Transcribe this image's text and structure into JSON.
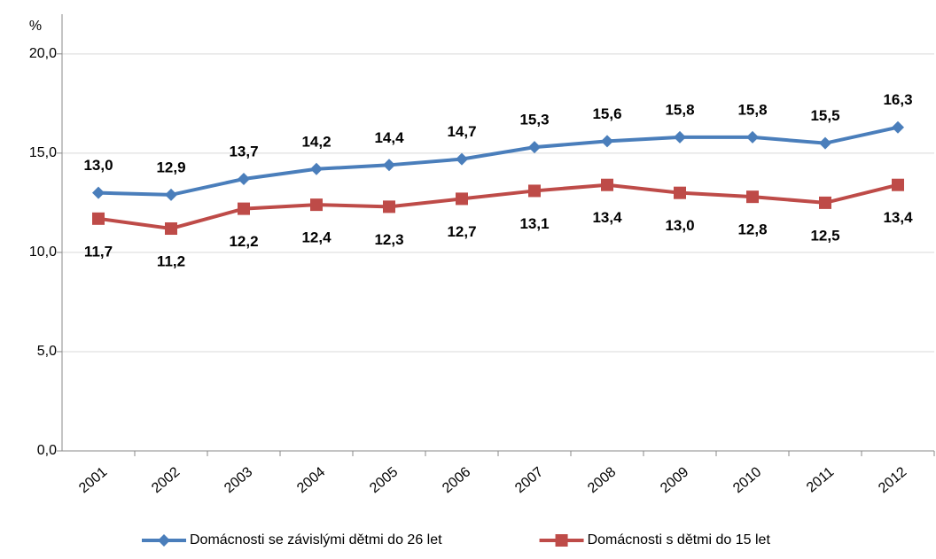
{
  "chart_data": {
    "type": "line",
    "y_label": "%",
    "categories": [
      "2001",
      "2002",
      "2003",
      "2004",
      "2005",
      "2006",
      "2007",
      "2008",
      "2009",
      "2010",
      "2011",
      "2012"
    ],
    "series": [
      {
        "name": "Domácnosti se závislými dětmi do 26 let",
        "color": "#4a7ebb",
        "marker": "diamond",
        "values": [
          13.0,
          12.9,
          13.7,
          14.2,
          14.4,
          14.7,
          15.3,
          15.6,
          15.8,
          15.8,
          15.5,
          16.3
        ],
        "value_labels": [
          "13,0",
          "12,9",
          "13,7",
          "14,2",
          "14,4",
          "14,7",
          "15,3",
          "15,6",
          "15,8",
          "15,8",
          "15,5",
          "16,3"
        ]
      },
      {
        "name": "Domácnosti s dětmi do 15 let",
        "color": "#be4b48",
        "marker": "square",
        "values": [
          11.7,
          11.2,
          12.2,
          12.4,
          12.3,
          12.7,
          13.1,
          13.4,
          13.0,
          12.8,
          12.5,
          13.4
        ],
        "value_labels": [
          "11,7",
          "11,2",
          "12,2",
          "12,4",
          "12,3",
          "12,7",
          "13,1",
          "13,4",
          "13,0",
          "12,8",
          "12,5",
          "13,4"
        ]
      }
    ],
    "ylim": [
      0,
      22
    ],
    "yticks": [
      {
        "value": 0,
        "label": "0,0"
      },
      {
        "value": 5,
        "label": "5,0"
      },
      {
        "value": 10,
        "label": "10,0"
      },
      {
        "value": 15,
        "label": "15,0"
      },
      {
        "value": 20,
        "label": "20,0"
      }
    ],
    "grid": true,
    "legend": "bottom"
  }
}
